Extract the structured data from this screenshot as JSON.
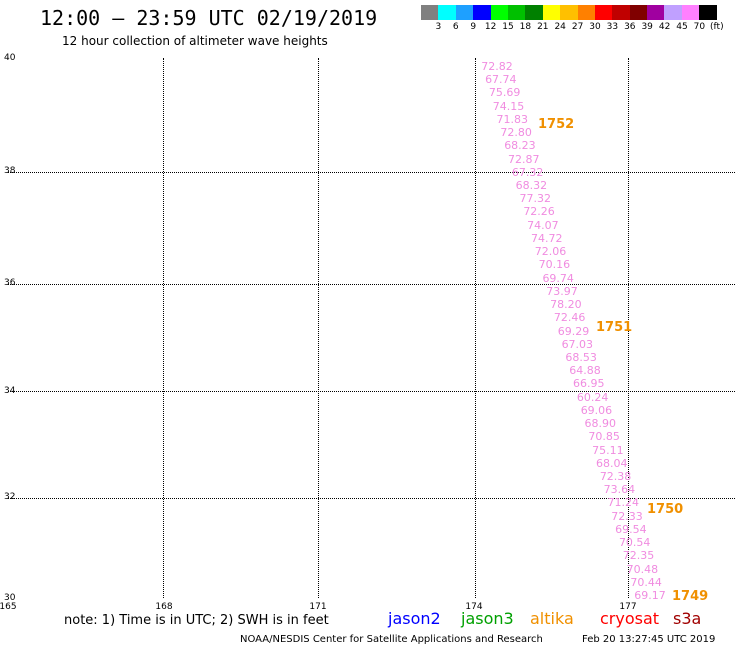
{
  "header": {
    "title": "12:00 – 23:59 UTC 02/19/2019",
    "subtitle": "12 hour collection of altimeter wave heights"
  },
  "legend": {
    "colors": [
      "#808080",
      "#00ffff",
      "#1ea0ff",
      "#0000ff",
      "#00ff00",
      "#00c000",
      "#008000",
      "#ffff00",
      "#ffc000",
      "#ff8000",
      "#ff0000",
      "#c00000",
      "#800000",
      "#a000a0",
      "#c0a0ff",
      "#ff80ff",
      "#000000"
    ],
    "labels": [
      "3",
      "6",
      "9",
      "12",
      "15",
      "18",
      "21",
      "24",
      "27",
      "30",
      "33",
      "36",
      "39",
      "42",
      "45",
      "70",
      "(ft)"
    ]
  },
  "map": {
    "lat_labels": [
      "40",
      "38",
      "36",
      "34",
      "32",
      "30"
    ],
    "lon_labels": [
      "165",
      "168",
      "171",
      "174",
      "177"
    ],
    "observations": [
      "72.82",
      "67.74",
      "75.69",
      "74.15",
      "71.83",
      "72.80",
      "68.23",
      "72.87",
      "67.32",
      "68.32",
      "77.32",
      "72.26",
      "74.07",
      "74.72",
      "72.06",
      "70.16",
      "69.74",
      "73.97",
      "78.20",
      "72.46",
      "69.29",
      "67.03",
      "68.53",
      "64.88",
      "66.95",
      "60.24",
      "69.06",
      "68.90",
      "70.85",
      "75.11",
      "68.04",
      "72.38",
      "73.64",
      "71.24",
      "72.33",
      "69.54",
      "70.54",
      "72.35",
      "70.48",
      "70.44",
      "69.17"
    ],
    "orbits": [
      "1752",
      "1751",
      "1750",
      "1749"
    ],
    "obs_color": "#f08ce0",
    "orbit_color": "#f09000"
  },
  "footer": {
    "note": "note: 1) Time is in UTC; 2) SWH is in feet",
    "satellites": [
      {
        "name": "jason2",
        "color": "#0000ff"
      },
      {
        "name": "jason3",
        "color": "#00a000"
      },
      {
        "name": "altika",
        "color": "#f09000"
      },
      {
        "name": "cryosat",
        "color": "#ff0000"
      },
      {
        "name": "s3a",
        "color": "#a00000"
      }
    ],
    "credit": "NOAA/NESDIS Center for Satellite Applications and Research",
    "timestamp": "Feb 20 13:27:45 UTC 2019"
  }
}
